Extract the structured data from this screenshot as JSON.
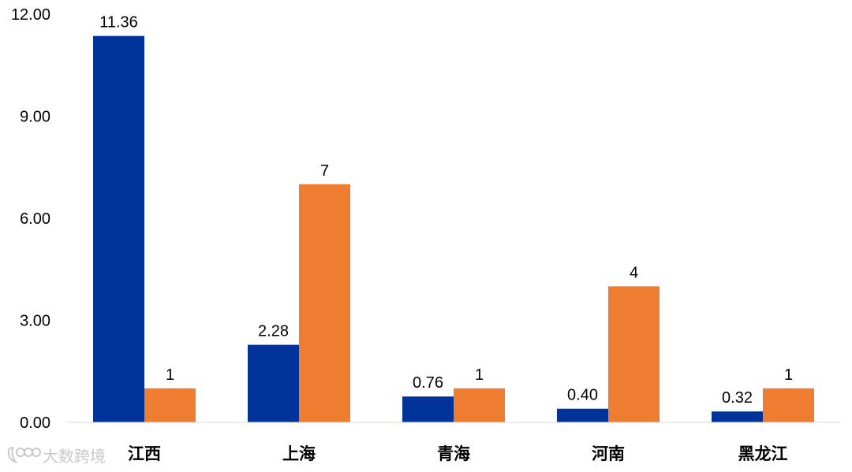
{
  "chart_data": {
    "type": "bar",
    "categories": [
      "江西",
      "上海",
      "青海",
      "河南",
      "黑龙江"
    ],
    "series": [
      {
        "values": [
          11.36,
          2.28,
          0.76,
          0.4,
          0.32
        ],
        "labels": [
          "11.36",
          "2.28",
          "0.76",
          "0.40",
          "0.32"
        ],
        "color": "#003399"
      },
      {
        "values": [
          1,
          7,
          1,
          4,
          1
        ],
        "labels": [
          "1",
          "7",
          "1",
          "4",
          "1"
        ],
        "color": "#ED7D31"
      }
    ],
    "yticks": [
      "0.00",
      "3.00",
      "6.00",
      "9.00",
      "12.00"
    ],
    "ylim": [
      0,
      12
    ],
    "grid": false,
    "title": "",
    "xlabel": "",
    "ylabel": ""
  },
  "watermark": {
    "text": "大数跨境",
    "icon": "logo-icon",
    "color": "#c9c9c9"
  }
}
